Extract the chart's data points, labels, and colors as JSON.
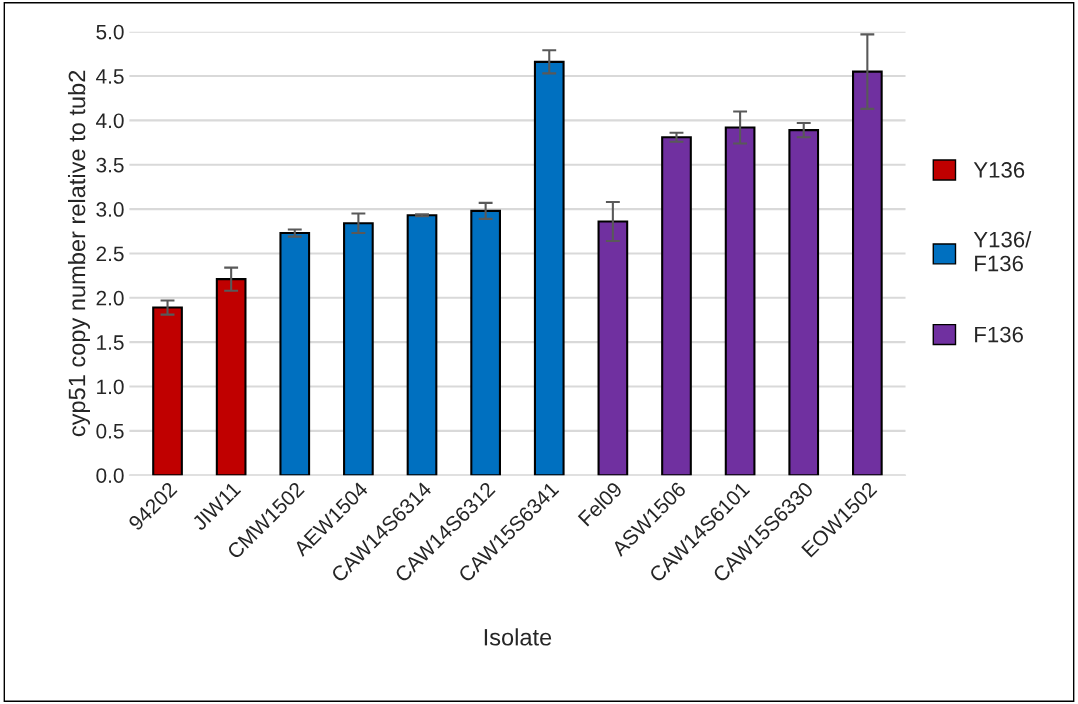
{
  "chart_data": {
    "type": "bar",
    "xlabel": "Isolate",
    "ylabel": "cyp51 copy number relative to tub2",
    "categories": [
      "94202",
      "JIW11",
      "CMW1502",
      "AEW1504",
      "CAW14S6314",
      "CAW14S6312",
      "CAW15S6341",
      "Fel09",
      "ASW1506",
      "CAW14S6101",
      "CAW15S6330",
      "EOW1502"
    ],
    "stacked": true,
    "series": [
      {
        "name": "Y136",
        "color": "#c00000",
        "values": [
          1.89,
          2.21,
          null,
          null,
          null,
          null,
          null,
          null,
          null,
          null,
          null,
          null
        ],
        "errors": [
          0.08,
          0.13,
          null,
          null,
          null,
          null,
          null,
          null,
          null,
          null,
          null,
          null
        ]
      },
      {
        "name": "Y136/\nF136",
        "color": "#0070c0",
        "values": [
          null,
          null,
          2.73,
          2.84,
          2.93,
          2.98,
          4.66,
          null,
          null,
          null,
          null,
          null
        ],
        "errors": [
          null,
          null,
          0.04,
          0.11,
          0.01,
          0.09,
          0.13,
          null,
          null,
          null,
          null,
          null
        ]
      },
      {
        "name": "F136",
        "color": "#7030a0",
        "values": [
          null,
          null,
          null,
          null,
          null,
          null,
          null,
          2.86,
          3.81,
          3.92,
          3.89,
          4.55
        ],
        "errors": [
          null,
          null,
          null,
          null,
          null,
          null,
          null,
          0.22,
          0.05,
          0.18,
          0.08,
          0.42
        ]
      }
    ],
    "ylim": [
      0,
      5
    ],
    "yticks": [
      {
        "value": 0,
        "label": "0.0"
      },
      {
        "value": 0.5,
        "label": "0.5"
      },
      {
        "value": 1,
        "label": "1.0"
      },
      {
        "value": 1.5,
        "label": "1.5"
      },
      {
        "value": 2,
        "label": "2.0"
      },
      {
        "value": 2.5,
        "label": "2.5"
      },
      {
        "value": 3,
        "label": "3.0"
      },
      {
        "value": 3.5,
        "label": "3.5"
      },
      {
        "value": 4,
        "label": "4.0"
      },
      {
        "value": 4.5,
        "label": "4.5"
      },
      {
        "value": 5,
        "label": "5.0"
      }
    ],
    "grid": "y",
    "legend": "right"
  }
}
